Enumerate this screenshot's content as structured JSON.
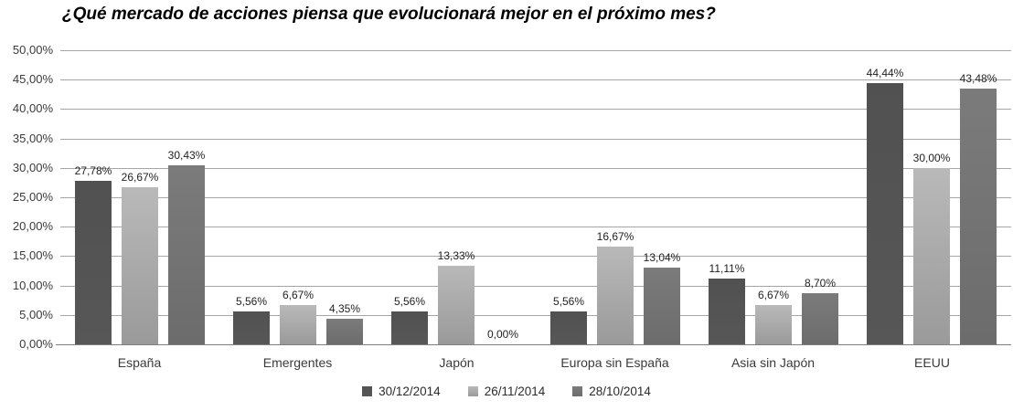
{
  "chart_data": {
    "type": "bar",
    "title": "¿Qué mercado de acciones piensa que evolucionará mejor en el próximo mes?",
    "categories": [
      "España",
      "Emergentes",
      "Japón",
      "Europa sin España",
      "Asia sin Japón",
      "EEUU"
    ],
    "series": [
      {
        "name": "30/12/2014",
        "values": [
          27.78,
          5.56,
          5.56,
          5.56,
          11.11,
          44.44
        ],
        "labels": [
          "27,78%",
          "5,56%",
          "5,56%",
          "5,56%",
          "11,11%",
          "44,44%"
        ],
        "color_top": "#515151",
        "color_bottom": "#575757"
      },
      {
        "name": "26/11/2014",
        "values": [
          26.67,
          6.67,
          13.33,
          16.67,
          6.67,
          30.0
        ],
        "labels": [
          "26,67%",
          "6,67%",
          "13,33%",
          "16,67%",
          "6,67%",
          "30,00%"
        ],
        "color_top": "#b9b9b9",
        "color_bottom": "#9a9a9a"
      },
      {
        "name": "28/10/2014",
        "values": [
          30.43,
          4.35,
          0.0,
          13.04,
          8.7,
          43.48
        ],
        "labels": [
          "30,43%",
          "4,35%",
          "0,00%",
          "13,04%",
          "8,70%",
          "43,48%"
        ],
        "color_top": "#7b7b7b",
        "color_bottom": "#6c6c6c"
      }
    ],
    "y_axis": {
      "min": 0,
      "max": 50,
      "step": 5,
      "tick_labels": [
        "50,00%",
        "45,00%",
        "40,00%",
        "35,00%",
        "30,00%",
        "25,00%",
        "20,00%",
        "15,00%",
        "10,00%",
        "5,00%",
        "0,00%"
      ]
    },
    "grid": true,
    "legend_position": "bottom",
    "colors": {
      "gridline": "#a6a6a6",
      "axis_line": "#7f7f7f",
      "background": "#ffffff"
    }
  }
}
